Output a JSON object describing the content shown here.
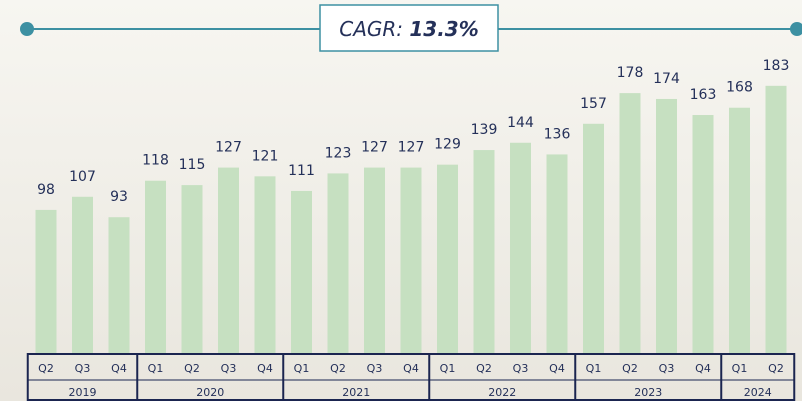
{
  "chart_data": {
    "type": "bar",
    "annotation": {
      "label": "CAGR:",
      "value": "13.3%"
    },
    "color": "#c6e0c1",
    "ylim": [
      0,
      200
    ],
    "groups": [
      {
        "name": "2019",
        "categories": [
          "Q2",
          "Q3",
          "Q4"
        ],
        "values": [
          98,
          107,
          93
        ]
      },
      {
        "name": "2020",
        "categories": [
          "Q1",
          "Q2",
          "Q3",
          "Q4"
        ],
        "values": [
          118,
          115,
          127,
          121
        ]
      },
      {
        "name": "2021",
        "categories": [
          "Q1",
          "Q2",
          "Q3",
          "Q4"
        ],
        "values": [
          111,
          123,
          127,
          127
        ]
      },
      {
        "name": "2022",
        "categories": [
          "Q1",
          "Q2",
          "Q3",
          "Q4"
        ],
        "values": [
          129,
          139,
          144,
          136
        ]
      },
      {
        "name": "2023",
        "categories": [
          "Q1",
          "Q2",
          "Q3",
          "Q4"
        ],
        "values": [
          157,
          178,
          174,
          163
        ]
      },
      {
        "name": "2024",
        "categories": [
          "Q1",
          "Q2"
        ],
        "values": [
          168,
          183
        ]
      }
    ]
  }
}
